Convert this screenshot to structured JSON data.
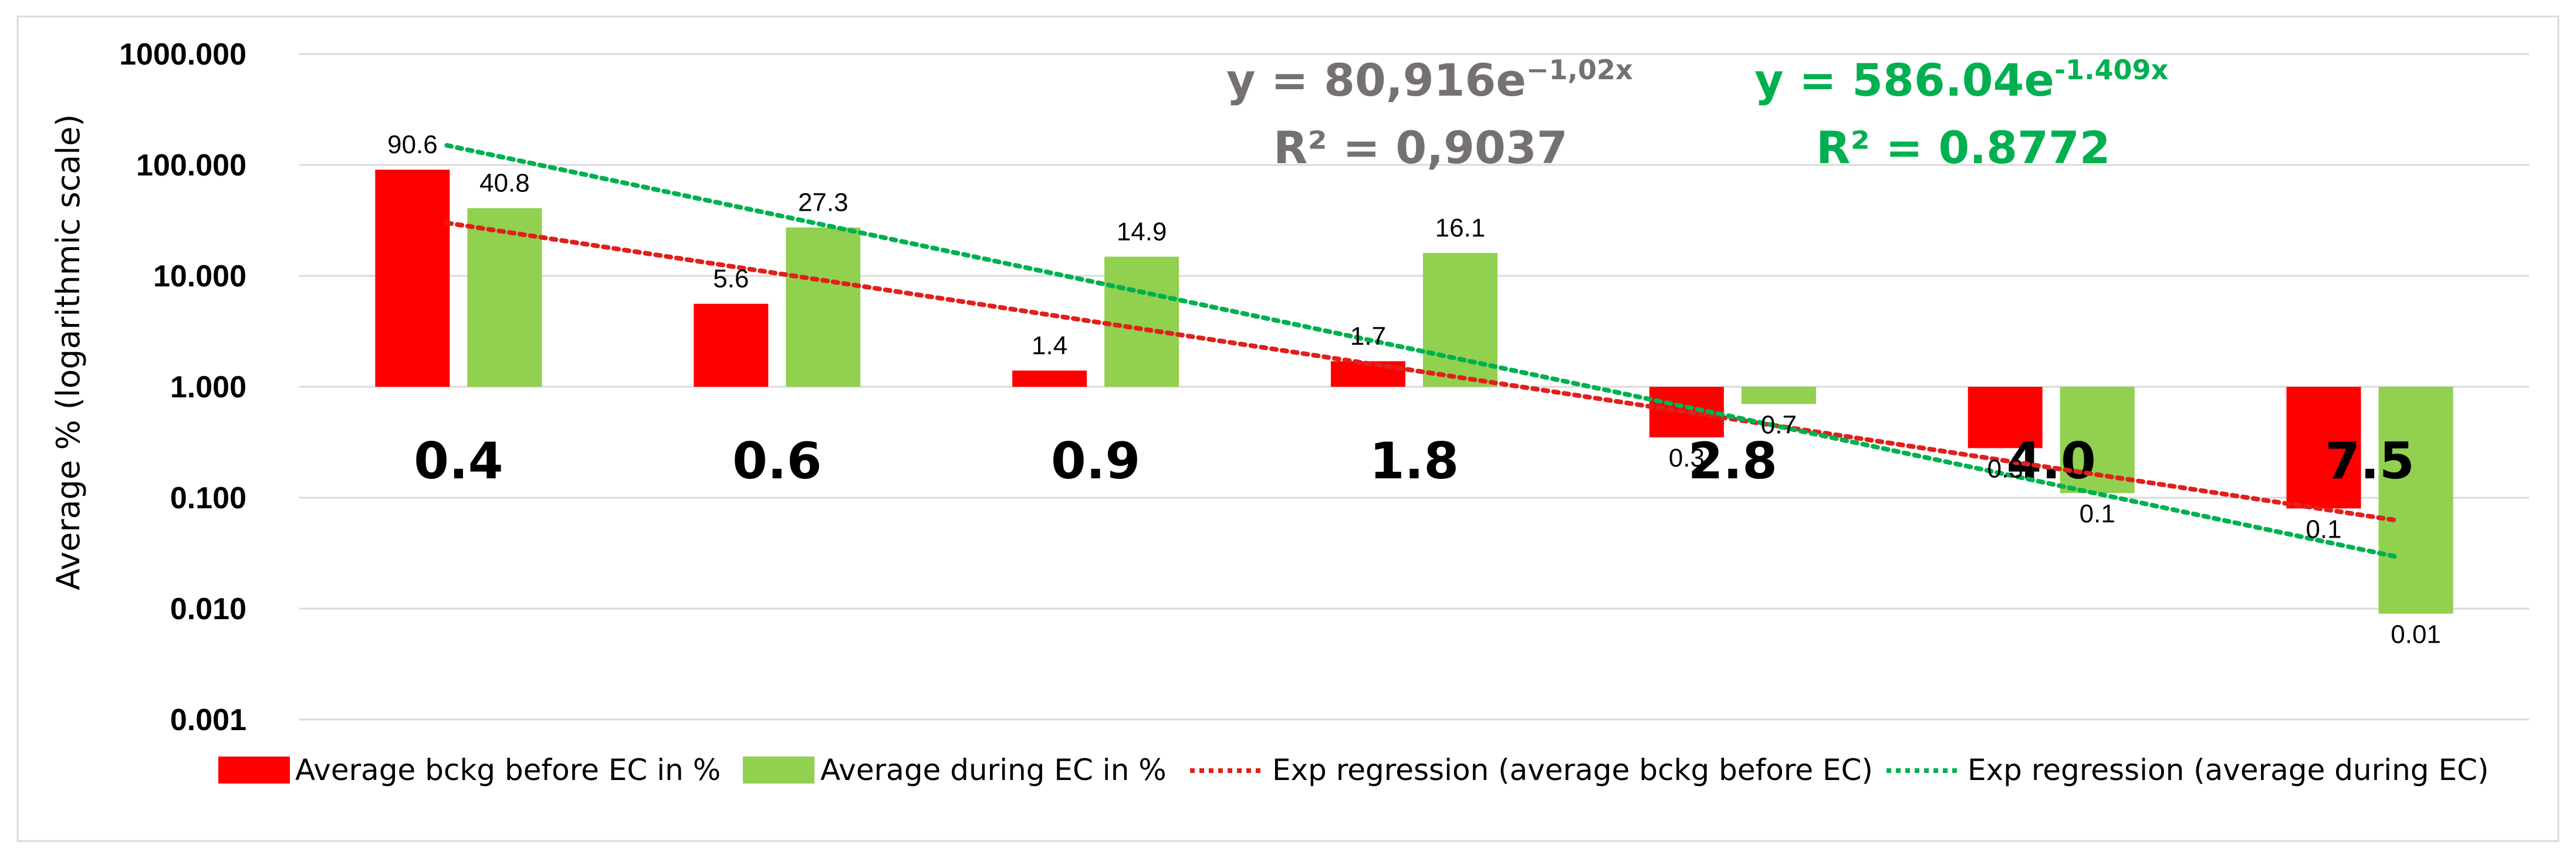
{
  "chart_data": {
    "type": "bar",
    "yscale": "log",
    "ylabel": "Average % (logarithmic scale)",
    "y_ticks": [
      "1000.000",
      "100.000",
      "10.000",
      "1.000",
      "0.100",
      "0.010",
      "0.001"
    ],
    "ylim": [
      0.001,
      1000
    ],
    "baseline": 1,
    "categories": [
      "0.4",
      "0.6",
      "0.9",
      "1.8",
      "2.8",
      "4.0",
      "7.5"
    ],
    "series": [
      {
        "name": "Average bckg before EC in %",
        "color": "#ff0000",
        "values": [
          90.6,
          5.6,
          1.4,
          1.7,
          0.35,
          0.28,
          0.08
        ],
        "labels": [
          "90.6",
          "5.6",
          "1.4",
          "1.7",
          "0.3",
          "0.3",
          "0.1"
        ]
      },
      {
        "name": "Average during EC in %",
        "color": "#92d050",
        "values": [
          40.8,
          27.3,
          14.9,
          16.1,
          0.7,
          0.11,
          0.009
        ],
        "labels": [
          "40.8",
          "27.3",
          "14.9",
          "16.1",
          "0.7",
          "0.1",
          "0.01"
        ]
      }
    ],
    "trendlines": [
      {
        "name": "Exp regression (average bckg before EC)",
        "color": "#e0201c",
        "style": "dotted",
        "start_value": 30,
        "end_value": 0.062,
        "equation": {
          "lead": "y = 80,916e",
          "exponent": "−1,02x",
          "r2": "R² = 0,9037"
        },
        "equation_color": "#767171"
      },
      {
        "name": "Exp regression (average during EC)",
        "color": "#00b050",
        "style": "dotted",
        "start_value": 150,
        "end_value": 0.029,
        "equation": {
          "lead": "y = 586.04e",
          "exponent": "-1.409x",
          "r2": "R² = 0.8772"
        },
        "equation_color": "#00b050"
      }
    ],
    "legend_position": "bottom"
  }
}
